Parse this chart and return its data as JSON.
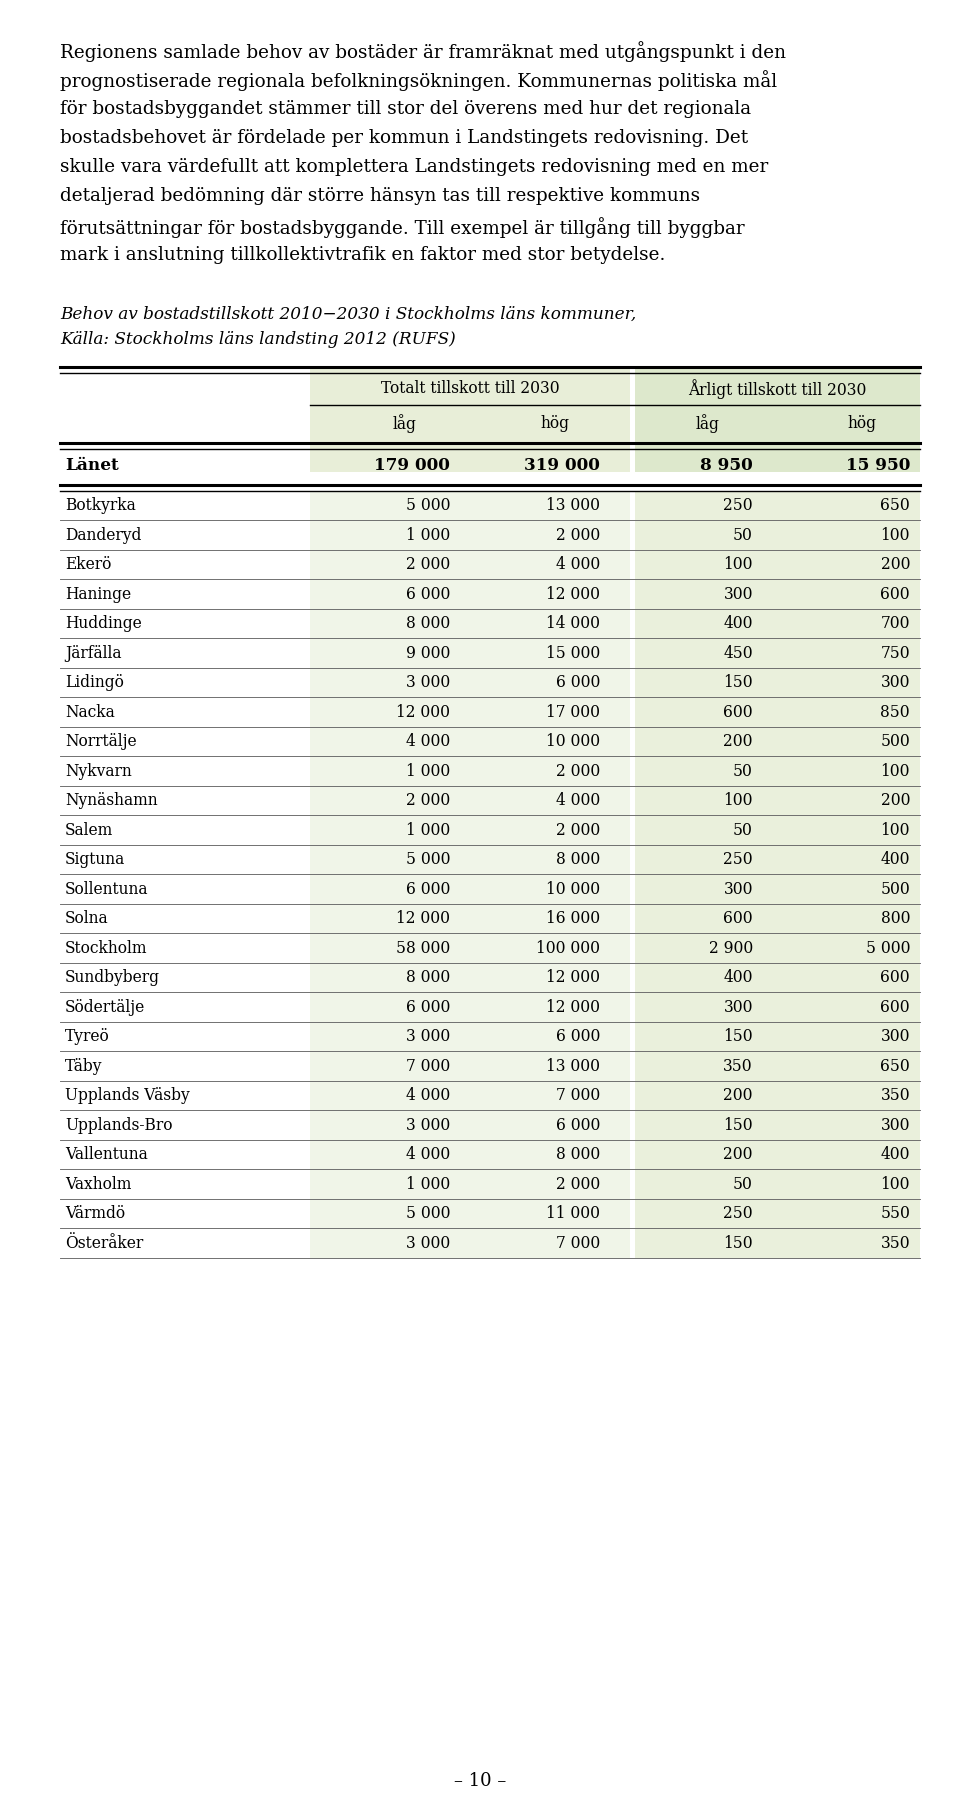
{
  "table_title": "Behov av bostadstillskott 2010−2030 i Stockholms läns kommuner,",
  "table_source": "Källa: Stockholms läns landsting 2012 (RUFS)",
  "col_headers_top": [
    "Totalt tillskott till 2030",
    "Årligt tillskott till 2030"
  ],
  "col_headers_sub": [
    "låg",
    "hög",
    "låg",
    "hög"
  ],
  "header_row": [
    "Länet",
    "179 000",
    "319 000",
    "8 950",
    "15 950"
  ],
  "rows": [
    [
      "Botkyrka",
      "5 000",
      "13 000",
      "250",
      "650"
    ],
    [
      "Danderyd",
      "1 000",
      "2 000",
      "50",
      "100"
    ],
    [
      "Ekerö",
      "2 000",
      "4 000",
      "100",
      "200"
    ],
    [
      "Haninge",
      "6 000",
      "12 000",
      "300",
      "600"
    ],
    [
      "Huddinge",
      "8 000",
      "14 000",
      "400",
      "700"
    ],
    [
      "Järfälla",
      "9 000",
      "15 000",
      "450",
      "750"
    ],
    [
      "Lidingö",
      "3 000",
      "6 000",
      "150",
      "300"
    ],
    [
      "Nacka",
      "12 000",
      "17 000",
      "600",
      "850"
    ],
    [
      "Norrtälje",
      "4 000",
      "10 000",
      "200",
      "500"
    ],
    [
      "Nykvarn",
      "1 000",
      "2 000",
      "50",
      "100"
    ],
    [
      "Nynäshamn",
      "2 000",
      "4 000",
      "100",
      "200"
    ],
    [
      "Salem",
      "1 000",
      "2 000",
      "50",
      "100"
    ],
    [
      "Sigtuna",
      "5 000",
      "8 000",
      "250",
      "400"
    ],
    [
      "Sollentuna",
      "6 000",
      "10 000",
      "300",
      "500"
    ],
    [
      "Solna",
      "12 000",
      "16 000",
      "600",
      "800"
    ],
    [
      "Stockholm",
      "58 000",
      "100 000",
      "2 900",
      "5 000"
    ],
    [
      "Sundbyberg",
      "8 000",
      "12 000",
      "400",
      "600"
    ],
    [
      "Södertälje",
      "6 000",
      "12 000",
      "300",
      "600"
    ],
    [
      "Tyreö",
      "3 000",
      "6 000",
      "150",
      "300"
    ],
    [
      "Täby",
      "7 000",
      "13 000",
      "350",
      "650"
    ],
    [
      "Upplands Väsby",
      "4 000",
      "7 000",
      "200",
      "350"
    ],
    [
      "Upplands-Bro",
      "3 000",
      "6 000",
      "150",
      "300"
    ],
    [
      "Vallentuna",
      "4 000",
      "8 000",
      "200",
      "400"
    ],
    [
      "Vaxholm",
      "1 000",
      "2 000",
      "50",
      "100"
    ],
    [
      "Värmdö",
      "5 000",
      "11 000",
      "250",
      "550"
    ],
    [
      "Österåker",
      "3 000",
      "7 000",
      "150",
      "350"
    ]
  ],
  "bg_color": "#ffffff",
  "text_color": "#000000",
  "page_number": "– 10 –"
}
